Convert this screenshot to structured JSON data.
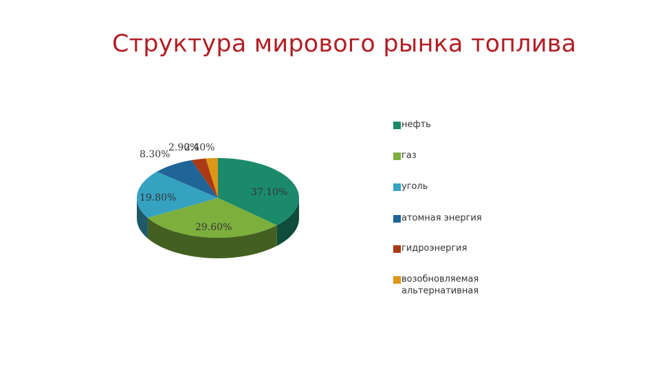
{
  "title": "Структура мирового рынка топлива",
  "chart_data": {
    "type": "pie",
    "title": "Структура мирового рынка топлива",
    "labels": [
      "нефть",
      "газ",
      "уголь",
      "атомная энергия",
      "гидроэнергия",
      "возобновляемая альтернативная"
    ],
    "values": [
      37.1,
      29.6,
      19.8,
      8.3,
      2.9,
      2.4
    ],
    "data_labels": [
      "37.10%",
      "29.60%",
      "19.80%",
      "8.30%",
      "2.90%",
      "2.40%"
    ],
    "colors": [
      "#1b8a6b",
      "#7caf3c",
      "#36a2c1",
      "#1f6597",
      "#aa3a17",
      "#dd9616"
    ],
    "legend_position": "right",
    "style": "3d"
  }
}
